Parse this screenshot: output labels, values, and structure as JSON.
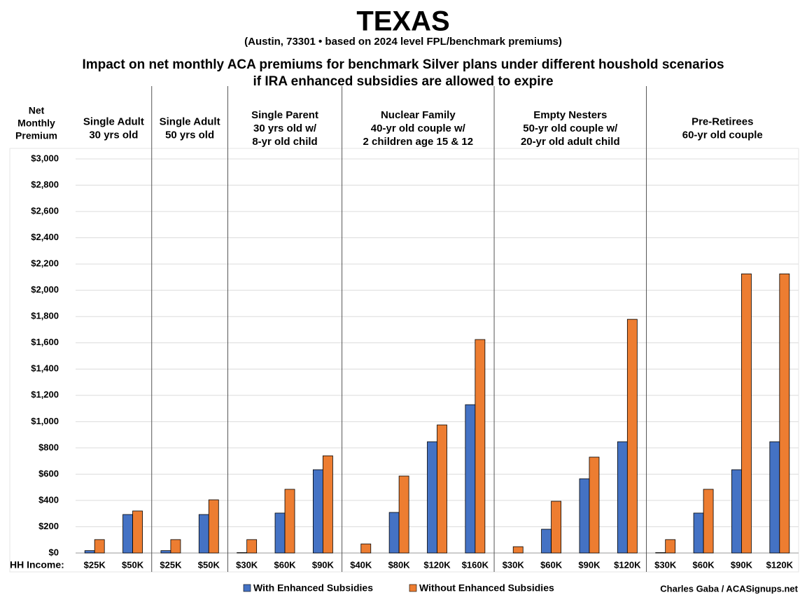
{
  "chart_data": {
    "type": "bar",
    "title": "TEXAS",
    "subtitle": "(Austin, 73301 • based on 2024 level FPL/benchmark premiums)",
    "heading": [
      "Impact on net monthly ACA premiums for benchmark Silver plans under different houshold scenarios",
      "if IRA enhanced subsidies are allowed to expire"
    ],
    "y_label": [
      "Net",
      "Monthly",
      "Premium"
    ],
    "x_label": "HH Income:",
    "credit": "Charles Gaba / ACASignups.net",
    "groups": [
      {
        "label": [
          "Single Adult",
          "30 yrs old"
        ],
        "categories": [
          "$25K",
          "$50K"
        ]
      },
      {
        "label": [
          "Single Adult",
          "50 yrs old"
        ],
        "categories": [
          "$25K",
          "$50K"
        ]
      },
      {
        "label": [
          "Single Parent",
          "30 yrs old w/",
          "8-yr old child"
        ],
        "categories": [
          "$30K",
          "$60K",
          "$90K"
        ]
      },
      {
        "label": [
          "Nuclear Family",
          "40-yr old couple w/",
          "2 children age 15 & 12"
        ],
        "categories": [
          "$40K",
          "$80K",
          "$120K",
          "$160K"
        ]
      },
      {
        "label": [
          "Empty Nesters",
          "50-yr old couple w/",
          "20-yr old adult child"
        ],
        "categories": [
          "$30K",
          "$60K",
          "$90K",
          "$120K"
        ]
      },
      {
        "label": [
          "Pre-Retirees",
          "60-yr old couple"
        ],
        "categories": [
          "$30K",
          "$60K",
          "$90K",
          "$120K"
        ]
      }
    ],
    "series": [
      {
        "name": "With Enhanced Subsidies",
        "color": "#4472c4",
        "values": [
          18,
          293,
          18,
          293,
          3,
          304,
          634,
          0,
          309,
          847,
          1129,
          0,
          181,
          565,
          847,
          3,
          304,
          634,
          847
        ]
      },
      {
        "name": "Without Enhanced Subsidies",
        "color": "#ed7d31",
        "values": [
          102,
          320,
          102,
          405,
          102,
          485,
          740,
          69,
          586,
          975,
          1625,
          48,
          394,
          730,
          1779,
          102,
          485,
          2125,
          2125
        ]
      }
    ],
    "ylim": [
      0,
      3000
    ],
    "yticks": [
      {
        "value": 0,
        "label": "$0"
      },
      {
        "value": 200,
        "label": "$200"
      },
      {
        "value": 400,
        "label": "$400"
      },
      {
        "value": 600,
        "label": "$600"
      },
      {
        "value": 800,
        "label": "$800"
      },
      {
        "value": 1000,
        "label": "$1,000"
      },
      {
        "value": 1200,
        "label": "$1,200"
      },
      {
        "value": 1400,
        "label": "$1,400"
      },
      {
        "value": 1600,
        "label": "$1,600"
      },
      {
        "value": 1800,
        "label": "$1,800"
      },
      {
        "value": 2000,
        "label": "$2,000"
      },
      {
        "value": 2200,
        "label": "$2,200"
      },
      {
        "value": 2400,
        "label": "$2,400"
      },
      {
        "value": 2600,
        "label": "$2,600"
      },
      {
        "value": 2800,
        "label": "$2,800"
      },
      {
        "value": 3000,
        "label": "$3,000"
      }
    ],
    "grid": true
  }
}
